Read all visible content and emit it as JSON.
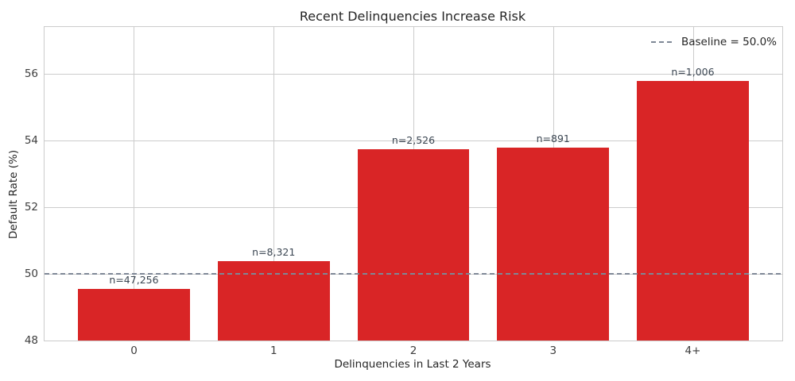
{
  "chart_data": {
    "type": "bar",
    "title": "Recent Delinquencies Increase Risk",
    "xlabel": "Delinquencies in Last 2 Years",
    "ylabel": "Default Rate (%)",
    "categories": [
      "0",
      "1",
      "2",
      "3",
      "4+"
    ],
    "values": [
      49.55,
      50.38,
      53.73,
      53.78,
      55.79
    ],
    "bar_labels": [
      "n=47,256",
      "n=8,321",
      "n=2,526",
      "n=891",
      "n=1,006"
    ],
    "yticks": [
      48,
      50,
      52,
      54,
      56
    ],
    "ylim": [
      48,
      57.4
    ],
    "baseline": {
      "value": 50.0,
      "label": "Baseline = 50.0%"
    },
    "legend_position": "upper right",
    "grid": true,
    "colors": {
      "bar": "#d92526",
      "baseline": "#7e8896",
      "grid": "#cccccc",
      "bar_label_text": "#3b4652"
    }
  }
}
